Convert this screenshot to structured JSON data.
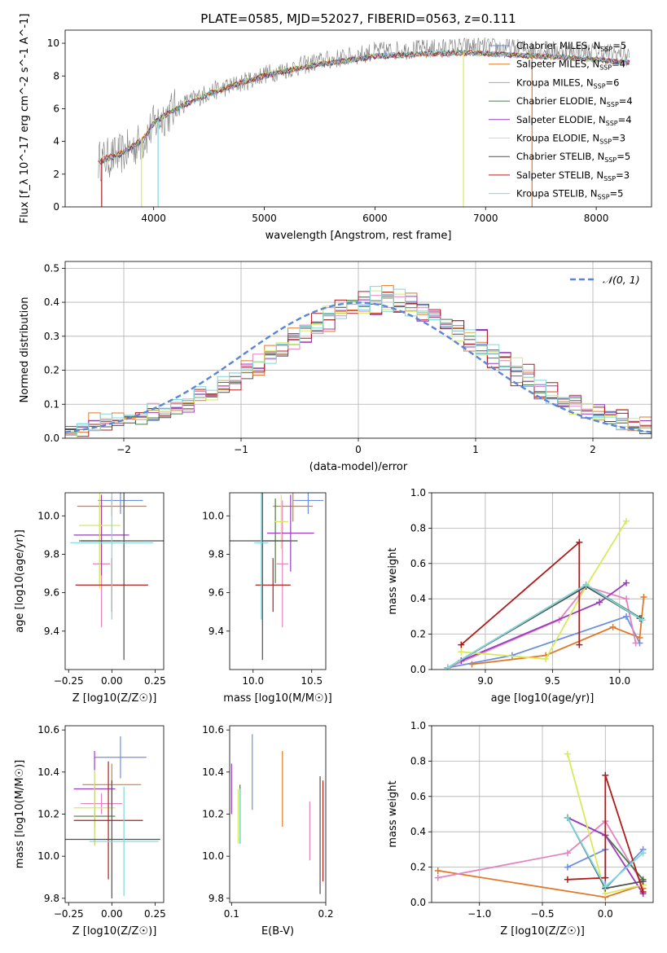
{
  "figure": {
    "title": "PLATE=0585, MJD=52027, FIBERID=0563, z=0.111"
  },
  "series_colors": {
    "Chabrier MILES": "#6b8fe3",
    "Salpeter MILES": "#e07a2a",
    "Kroupa MILES": "#e384c0",
    "Chabrier ELODIE": "#4a7a4a",
    "Salpeter ELODIE": "#9a3cc0",
    "Kroupa ELODIE": "#d8ea5a",
    "Chabrier STELIB": "#505050",
    "Salpeter STELIB": "#b01c1c",
    "Kroupa STELIB": "#7fd8dc"
  },
  "chart_data": [
    {
      "panel": "spectrum",
      "type": "line",
      "xlabel": "wavelength [Angstrom, rest frame]",
      "ylabel": "Flux [f_λ 10^-17 erg cm^-2 s^-1 A^-1]",
      "xlim": [
        3200,
        8500
      ],
      "ylim": [
        0,
        10.8
      ],
      "xticks": [
        4000,
        5000,
        6000,
        7000,
        8000
      ],
      "yticks": [
        0,
        2,
        4,
        6,
        8,
        10
      ],
      "grid": false,
      "legend_position": "right",
      "data_series": {
        "name": "",
        "color": "#7f7f7f",
        "x": [
          3500,
          3700,
          3900,
          4000,
          4100,
          4300,
          4500,
          4800,
          5000,
          5200,
          5500,
          5800,
          6000,
          6300,
          6600,
          6900,
          7200,
          7500,
          7800,
          8000,
          8300
        ],
        "y": [
          2.8,
          3.2,
          4.0,
          5.0,
          5.6,
          6.4,
          7.0,
          7.6,
          8.1,
          8.4,
          8.9,
          9.2,
          9.5,
          9.6,
          9.7,
          9.8,
          9.7,
          9.6,
          9.5,
          9.5,
          9.3
        ]
      },
      "series": [
        {
          "name": "Chabrier MILES",
          "nssp": 5,
          "values": [
            2.7,
            3.2,
            4.1,
            5.1,
            5.6,
            6.3,
            6.9,
            7.6,
            8.0,
            8.3,
            8.7,
            9.0,
            9.2,
            9.3,
            9.4,
            9.4,
            9.3,
            9.2,
            9.1,
            9.0,
            8.8
          ]
        },
        {
          "name": "Salpeter MILES",
          "nssp": 4,
          "values": [
            2.8,
            3.3,
            4.1,
            5.1,
            5.6,
            6.3,
            6.9,
            7.6,
            8.0,
            8.3,
            8.7,
            9.0,
            9.2,
            9.3,
            9.3,
            9.4,
            9.3,
            9.2,
            9.1,
            9.0,
            8.8
          ]
        },
        {
          "name": "Kroupa MILES",
          "nssp": 6,
          "values": [
            2.7,
            3.2,
            4.0,
            5.1,
            5.6,
            6.3,
            6.9,
            7.6,
            8.0,
            8.3,
            8.7,
            9.0,
            9.2,
            9.3,
            9.4,
            9.4,
            9.3,
            9.2,
            9.1,
            9.0,
            8.8
          ]
        },
        {
          "name": "Chabrier ELODIE",
          "nssp": 4,
          "values": [
            2.7,
            3.2,
            4.1,
            5.1,
            5.6,
            6.3,
            6.9,
            7.6,
            8.0,
            8.3,
            8.7,
            9.0,
            9.2,
            9.3,
            9.4,
            9.4,
            9.3,
            9.2,
            9.1,
            9.0,
            8.8
          ]
        },
        {
          "name": "Salpeter ELODIE",
          "nssp": 4,
          "values": [
            2.8,
            3.2,
            4.1,
            5.1,
            5.6,
            6.3,
            6.9,
            7.6,
            8.0,
            8.3,
            8.7,
            9.0,
            9.2,
            9.3,
            9.4,
            9.4,
            9.3,
            9.2,
            9.1,
            9.0,
            8.8
          ]
        },
        {
          "name": "Kroupa ELODIE",
          "nssp": 3,
          "values": [
            2.7,
            3.2,
            4.1,
            5.1,
            5.6,
            6.4,
            7.0,
            7.7,
            8.1,
            8.4,
            8.8,
            9.0,
            9.2,
            9.3,
            9.4,
            9.4,
            9.3,
            9.2,
            9.1,
            9.0,
            8.8
          ]
        },
        {
          "name": "Chabrier STELIB",
          "nssp": 5,
          "values": [
            2.7,
            3.2,
            4.0,
            5.1,
            5.6,
            6.3,
            6.9,
            7.6,
            8.0,
            8.3,
            8.7,
            9.0,
            9.2,
            9.3,
            9.4,
            9.4,
            9.3,
            9.2,
            9.1,
            9.0,
            8.8
          ]
        },
        {
          "name": "Salpeter STELIB",
          "nssp": 3,
          "values": [
            2.8,
            3.3,
            4.1,
            5.1,
            5.6,
            6.3,
            6.9,
            7.6,
            8.0,
            8.3,
            8.7,
            9.0,
            9.2,
            9.3,
            9.4,
            9.4,
            9.3,
            9.2,
            9.1,
            9.0,
            8.8
          ]
        },
        {
          "name": "Kroupa STELIB",
          "nssp": 5,
          "values": [
            2.7,
            3.2,
            4.1,
            5.1,
            5.6,
            6.3,
            6.9,
            7.6,
            8.0,
            8.3,
            8.7,
            9.0,
            9.2,
            9.3,
            9.4,
            9.4,
            9.3,
            9.2,
            9.1,
            9.0,
            8.8
          ]
        }
      ]
    },
    {
      "panel": "residuals",
      "type": "area",
      "xlabel": "(data-model)/error",
      "ylabel": "Normed distribution",
      "xlim": [
        -2.5,
        2.5
      ],
      "ylim": [
        0,
        0.52
      ],
      "xticks": [
        -2,
        -1,
        0,
        1,
        2
      ],
      "yticks": [
        0.0,
        0.1,
        0.2,
        0.3,
        0.4,
        0.5
      ],
      "grid": true,
      "legend": "N(0,1)",
      "legend_position": "top-right",
      "bins_start": -2.5,
      "bin_width": 0.1,
      "histograms": [
        [
          0.02,
          0.03,
          0.04,
          0.05,
          0.05,
          0.06,
          0.06,
          0.07,
          0.08,
          0.09,
          0.1,
          0.12,
          0.13,
          0.15,
          0.17,
          0.19,
          0.21,
          0.24,
          0.26,
          0.29,
          0.31,
          0.33,
          0.35,
          0.37,
          0.39,
          0.4,
          0.41,
          0.41,
          0.4,
          0.39,
          0.38,
          0.36,
          0.34,
          0.32,
          0.29,
          0.27,
          0.24,
          0.22,
          0.19,
          0.17,
          0.15,
          0.13,
          0.11,
          0.1,
          0.08,
          0.07,
          0.06,
          0.05,
          0.04,
          0.03
        ],
        [
          0.03,
          0.02,
          0.06,
          0.04,
          0.06,
          0.05,
          0.07,
          0.08,
          0.07,
          0.1,
          0.09,
          0.13,
          0.12,
          0.16,
          0.16,
          0.21,
          0.19,
          0.26,
          0.24,
          0.31,
          0.29,
          0.35,
          0.33,
          0.39,
          0.36,
          0.42,
          0.38,
          0.43,
          0.38,
          0.41,
          0.35,
          0.37,
          0.31,
          0.34,
          0.26,
          0.3,
          0.22,
          0.25,
          0.17,
          0.2,
          0.13,
          0.15,
          0.1,
          0.12,
          0.07,
          0.09,
          0.05,
          0.07,
          0.03,
          0.05
        ],
        [
          0.01,
          0.04,
          0.03,
          0.06,
          0.05,
          0.07,
          0.06,
          0.09,
          0.08,
          0.11,
          0.1,
          0.14,
          0.13,
          0.17,
          0.18,
          0.2,
          0.23,
          0.24,
          0.28,
          0.28,
          0.33,
          0.32,
          0.37,
          0.36,
          0.4,
          0.38,
          0.43,
          0.39,
          0.42,
          0.37,
          0.39,
          0.34,
          0.35,
          0.3,
          0.31,
          0.25,
          0.26,
          0.21,
          0.22,
          0.16,
          0.17,
          0.12,
          0.13,
          0.09,
          0.09,
          0.06,
          0.07,
          0.04,
          0.04,
          0.02
        ]
      ],
      "gaussian": {
        "mean": 0,
        "sigma": 1
      }
    },
    {
      "panel": "age-vs-Z",
      "type": "scatter",
      "xlabel": "Z [log10(Z/Z☉)]",
      "ylabel": "age [log10(age/yr)]",
      "xlim": [
        -0.27,
        0.3
      ],
      "ylim": [
        9.2,
        10.12
      ],
      "xticks": [
        -0.25,
        0.0,
        0.25
      ],
      "yticks": [
        9.4,
        9.6,
        9.8,
        10.0
      ],
      "points": [
        {
          "x": 0.05,
          "y": 10.08,
          "xerr": 0.13,
          "yerr": 0.07
        },
        {
          "x": 0.0,
          "y": 10.05,
          "xerr": 0.2,
          "yerr": 0.05
        },
        {
          "x": -0.06,
          "y": 9.75,
          "xerr": 0.05,
          "yerr": 0.33
        },
        {
          "x": -0.07,
          "y": 9.87,
          "xerr": 0.12,
          "yerr": 0.22
        },
        {
          "x": -0.06,
          "y": 9.9,
          "xerr": 0.16,
          "yerr": 0.21
        },
        {
          "x": -0.07,
          "y": 9.95,
          "xerr": 0.12,
          "yerr": 0.33
        },
        {
          "x": 0.07,
          "y": 9.87,
          "xerr": 0.25,
          "yerr": 0.62
        },
        {
          "x": 0.0,
          "y": 9.64,
          "xerr": 0.21,
          "yerr": 0.14
        },
        {
          "x": 0.0,
          "y": 9.86,
          "xerr": 0.24,
          "yerr": 0.4
        }
      ]
    },
    {
      "panel": "age-vs-mass",
      "type": "scatter",
      "xlabel": "mass [log10(M/M☉)]",
      "ylabel": "",
      "xlim": [
        9.8,
        10.62
      ],
      "ylim": [
        9.2,
        10.12
      ],
      "xticks": [
        10.0,
        10.5
      ],
      "yticks": [
        9.4,
        9.6,
        9.8,
        10.0
      ],
      "points": [
        {
          "x": 10.47,
          "y": 10.08,
          "xerr": 0.13,
          "yerr": 0.07
        },
        {
          "x": 10.34,
          "y": 10.05,
          "xerr": 0.17,
          "yerr": 0.08
        },
        {
          "x": 10.25,
          "y": 9.75,
          "xerr": 0.05,
          "yerr": 0.33
        },
        {
          "x": 10.19,
          "y": 9.87,
          "xerr": 0.12,
          "yerr": 0.22
        },
        {
          "x": 10.32,
          "y": 9.91,
          "xerr": 0.2,
          "yerr": 0.2
        },
        {
          "x": 10.24,
          "y": 9.97,
          "xerr": 0.06,
          "yerr": 0.14
        },
        {
          "x": 10.08,
          "y": 9.87,
          "xerr": 0.3,
          "yerr": 0.62
        },
        {
          "x": 10.17,
          "y": 9.64,
          "xerr": 0.15,
          "yerr": 0.14
        },
        {
          "x": 10.07,
          "y": 9.86,
          "xerr": 0.06,
          "yerr": 0.4
        }
      ]
    },
    {
      "panel": "weight-vs-age",
      "type": "line",
      "xlabel": "age [log10(age/yr)]",
      "ylabel": "mass weight",
      "xlim": [
        8.6,
        10.25
      ],
      "ylim": [
        0,
        1.0
      ],
      "xticks": [
        9.0,
        9.5,
        10.0
      ],
      "yticks": [
        0.0,
        0.2,
        0.4,
        0.6,
        0.8,
        1.0
      ],
      "grid": true,
      "series": [
        {
          "name": "Chabrier MILES",
          "x": [
            8.72,
            9.2,
            10.05,
            10.15
          ],
          "values": [
            0.01,
            0.08,
            0.3,
            0.15
          ]
        },
        {
          "name": "Salpeter MILES",
          "x": [
            8.9,
            9.45,
            9.95,
            10.15,
            10.18
          ],
          "values": [
            0.03,
            0.08,
            0.24,
            0.18,
            0.41
          ]
        },
        {
          "name": "Kroupa MILES",
          "x": [
            8.72,
            9.55,
            9.75,
            10.05,
            10.12
          ],
          "values": [
            0.01,
            0.28,
            0.47,
            0.4,
            0.15
          ]
        },
        {
          "name": "Chabrier ELODIE",
          "x": [
            8.72,
            9.75,
            10.16
          ],
          "values": [
            0.01,
            0.48,
            0.29
          ]
        },
        {
          "name": "Salpeter ELODIE",
          "x": [
            8.82,
            9.85,
            10.05
          ],
          "values": [
            0.05,
            0.38,
            0.49
          ]
        },
        {
          "name": "Kroupa ELODIE",
          "x": [
            8.82,
            9.45,
            9.75,
            10.05
          ],
          "values": [
            0.1,
            0.06,
            0.47,
            0.84
          ]
        },
        {
          "name": "Chabrier STELIB",
          "x": [
            8.72,
            9.75,
            10.15
          ],
          "values": [
            0.01,
            0.47,
            0.29
          ]
        },
        {
          "name": "Salpeter STELIB",
          "x": [
            8.82,
            9.7,
            9.7
          ],
          "values": [
            0.14,
            0.72,
            0.14
          ]
        },
        {
          "name": "Kroupa STELIB",
          "x": [
            8.72,
            9.75,
            10.17
          ],
          "values": [
            0.01,
            0.48,
            0.28
          ]
        }
      ]
    },
    {
      "panel": "mass-vs-Z",
      "type": "scatter",
      "xlabel": "Z [log10(Z/Z☉)]",
      "ylabel": "mass [log10(M/M☉)]",
      "xlim": [
        -0.27,
        0.3
      ],
      "ylim": [
        9.78,
        10.62
      ],
      "xticks": [
        -0.25,
        0.0,
        0.25
      ],
      "yticks": [
        9.8,
        10.0,
        10.2,
        10.4,
        10.6
      ],
      "points": [
        {
          "x": 0.05,
          "y": 10.47,
          "xerr": 0.15,
          "yerr": 0.1
        },
        {
          "x": 0.0,
          "y": 10.34,
          "xerr": 0.17,
          "yerr": 0.1
        },
        {
          "x": -0.06,
          "y": 10.25,
          "xerr": 0.12,
          "yerr": 0.05
        },
        {
          "x": -0.1,
          "y": 10.19,
          "xerr": 0.12,
          "yerr": 0.14
        },
        {
          "x": -0.1,
          "y": 10.32,
          "xerr": 0.12,
          "yerr": 0.18
        },
        {
          "x": -0.1,
          "y": 10.23,
          "xerr": 0.12,
          "yerr": 0.18
        },
        {
          "x": 0.0,
          "y": 10.08,
          "xerr": 0.28,
          "yerr": 0.28
        },
        {
          "x": -0.02,
          "y": 10.17,
          "xerr": 0.2,
          "yerr": 0.28
        },
        {
          "x": 0.07,
          "y": 10.07,
          "xerr": 0.2,
          "yerr": 0.26
        }
      ]
    },
    {
      "panel": "mass-vs-EBV",
      "type": "scatter",
      "xlabel": "E(B-V)",
      "ylabel": "",
      "xlim": [
        0.098,
        0.2
      ],
      "ylim": [
        9.78,
        10.62
      ],
      "xticks": [
        0.1,
        0.2
      ],
      "yticks": [
        9.8,
        10.0,
        10.2,
        10.4,
        10.6
      ],
      "points": [
        {
          "x": 0.122,
          "y": 10.4,
          "xerr": 0,
          "yerr": 0.18
        },
        {
          "x": 0.154,
          "y": 10.32,
          "xerr": 0,
          "yerr": 0.18
        },
        {
          "x": 0.183,
          "y": 10.12,
          "xerr": 0,
          "yerr": 0.14
        },
        {
          "x": 0.109,
          "y": 10.2,
          "xerr": 0,
          "yerr": 0.14
        },
        {
          "x": 0.1,
          "y": 10.32,
          "xerr": 0,
          "yerr": 0.12
        },
        {
          "x": 0.107,
          "y": 10.19,
          "xerr": 0,
          "yerr": 0.13
        },
        {
          "x": 0.194,
          "y": 10.1,
          "xerr": 0,
          "yerr": 0.28
        },
        {
          "x": 0.197,
          "y": 10.12,
          "xerr": 0,
          "yerr": 0.24
        },
        {
          "x": 0.109,
          "y": 10.19,
          "xerr": 0,
          "yerr": 0.13
        }
      ]
    },
    {
      "panel": "weight-vs-Z",
      "type": "line",
      "xlabel": "Z [log10(Z/Z☉)]",
      "ylabel": "mass weight",
      "xlim": [
        -1.38,
        0.38
      ],
      "ylim": [
        0,
        1.0
      ],
      "xticks": [
        -1.0,
        -0.5,
        0.0
      ],
      "yticks": [
        0.0,
        0.2,
        0.4,
        0.6,
        0.8,
        1.0
      ],
      "grid": true,
      "series": [
        {
          "name": "Chabrier MILES",
          "x": [
            -0.3,
            0.0,
            0.0,
            0.3
          ],
          "values": [
            0.2,
            0.3,
            0.08,
            0.3
          ]
        },
        {
          "name": "Salpeter MILES",
          "x": [
            -1.33,
            0.0,
            0.3,
            0.3
          ],
          "values": [
            0.18,
            0.03,
            0.1,
            0.08
          ]
        },
        {
          "name": "Kroupa MILES",
          "x": [
            -1.33,
            -0.3,
            0.0,
            0.3
          ],
          "values": [
            0.14,
            0.28,
            0.46,
            0.1
          ]
        },
        {
          "name": "Chabrier ELODIE",
          "x": [
            -0.3,
            0.0,
            0.3
          ],
          "values": [
            0.48,
            0.38,
            0.13
          ]
        },
        {
          "name": "Salpeter ELODIE",
          "x": [
            -0.3,
            0.0,
            0.3
          ],
          "values": [
            0.48,
            0.38,
            0.05
          ]
        },
        {
          "name": "Kroupa ELODIE",
          "x": [
            -0.3,
            0.0,
            0.3
          ],
          "values": [
            0.84,
            0.05,
            0.1
          ]
        },
        {
          "name": "Chabrier STELIB",
          "x": [
            -0.3,
            0.0,
            0.3
          ],
          "values": [
            0.48,
            0.08,
            0.12
          ]
        },
        {
          "name": "Salpeter STELIB",
          "x": [
            -0.3,
            0.0,
            0.0,
            0.3
          ],
          "values": [
            0.13,
            0.14,
            0.72,
            0.06
          ]
        },
        {
          "name": "Kroupa STELIB",
          "x": [
            -0.3,
            0.0,
            0.3
          ],
          "values": [
            0.48,
            0.09,
            0.28
          ]
        }
      ]
    }
  ]
}
